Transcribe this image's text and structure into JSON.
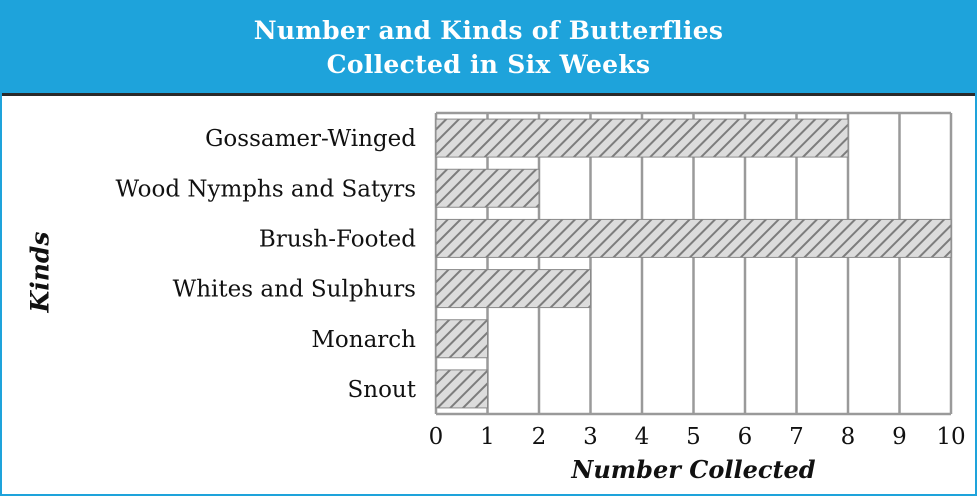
{
  "header": {
    "title_line1": "Number and Kinds of Butterflies",
    "title_line2": "Collected in Six Weeks"
  },
  "colors": {
    "header_bg": "#1ea3db",
    "header_text": "#ffffff",
    "bar_hatch": "#8a8a8a",
    "bar_fill": "#d9d9d9",
    "grid": "#9a9a9a"
  },
  "chart_data": {
    "type": "bar",
    "orientation": "horizontal",
    "title": "Number and Kinds of Butterflies Collected in Six Weeks",
    "xlabel": "Number Collected",
    "ylabel": "Kinds",
    "categories": [
      "Gossamer-Winged",
      "Wood Nymphs and Satyrs",
      "Brush-Footed",
      "Whites and Sulphurs",
      "Monarch",
      "Snout"
    ],
    "values": [
      8,
      2,
      10,
      3,
      1,
      1
    ],
    "xlim": [
      0,
      10
    ],
    "xticks": [
      "0",
      "1",
      "2",
      "3",
      "4",
      "5",
      "6",
      "7",
      "8",
      "9",
      "10"
    ],
    "grid": true,
    "bar_style": "hatched"
  }
}
